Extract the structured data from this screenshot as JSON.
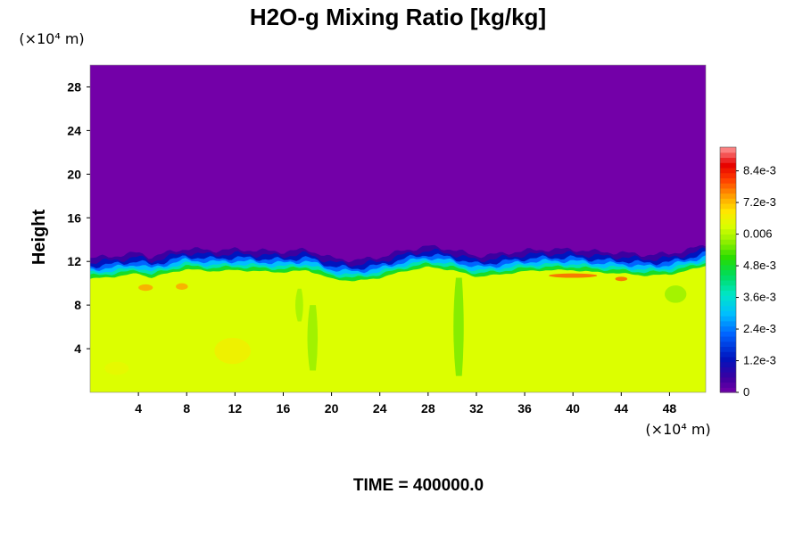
{
  "chart_data": {
    "type": "heatmap",
    "title": "H2O-g Mixing Ratio [kg/kg]",
    "xlabel": "",
    "ylabel": "Height",
    "x_unit": "(×10⁴ m)",
    "y_unit": "(×10⁴ m)",
    "xlim": [
      0,
      51
    ],
    "ylim": [
      0,
      30
    ],
    "x_ticks": [
      "4",
      "8",
      "12",
      "16",
      "20",
      "24",
      "28",
      "32",
      "36",
      "40",
      "44",
      "48"
    ],
    "y_ticks": [
      "4",
      "8",
      "12",
      "16",
      "20",
      "24",
      "28"
    ],
    "colorbar": {
      "min": 0,
      "max": 0.0093,
      "tick_labels": [
        "0",
        "1.2e-3",
        "2.4e-3",
        "3.6e-3",
        "4.8e-3",
        "0.006",
        "7.2e-3",
        "8.4e-3"
      ],
      "tick_values": [
        0,
        0.0012,
        0.0024,
        0.0036,
        0.0048,
        0.006,
        0.0072,
        0.0084
      ]
    },
    "field_summary": {
      "upper_value": 0,
      "lower_value": 0.0063,
      "interface_height_profile": {
        "x": [
          0,
          2,
          4,
          5,
          6,
          8,
          10,
          12,
          14,
          16,
          18,
          20,
          22,
          24,
          26,
          28,
          30,
          32,
          34,
          36,
          38,
          40,
          42,
          44,
          46,
          48,
          50,
          51
        ],
        "height": [
          10.4,
          10.6,
          10.9,
          10.5,
          10.8,
          11.3,
          11.1,
          11.2,
          11.1,
          11.0,
          11.2,
          10.4,
          10.2,
          10.5,
          11.1,
          11.5,
          11.2,
          10.6,
          10.8,
          11.1,
          11.2,
          11.2,
          11.0,
          10.9,
          10.7,
          10.8,
          11.3,
          11.6
        ]
      }
    },
    "annotation": "TIME = 400000.0"
  },
  "colors": {
    "background": "#ffffff",
    "upper_fill": "#7300a8",
    "lower_fill": "#dcff00"
  }
}
